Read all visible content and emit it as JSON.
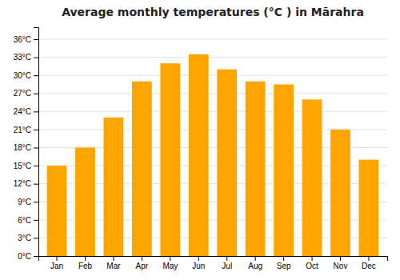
{
  "chart_data": {
    "type": "bar",
    "title": "Average monthly temperatures (°C ) in Mārahra",
    "categories": [
      "Jan",
      "Feb",
      "Mar",
      "Apr",
      "May",
      "Jun",
      "Jul",
      "Aug",
      "Sep",
      "Oct",
      "Nov",
      "Dec"
    ],
    "values": [
      15,
      18,
      23,
      29,
      32,
      33.5,
      31,
      29,
      28.5,
      26,
      21,
      16
    ],
    "color": "#FFA500",
    "ylim": [
      0,
      38
    ],
    "yticks": [
      {
        "value": 0,
        "label": "0°C"
      },
      {
        "value": 3,
        "label": "3°C"
      },
      {
        "value": 6,
        "label": "6°C"
      },
      {
        "value": 9,
        "label": "9°C"
      },
      {
        "value": 12,
        "label": "12°C"
      },
      {
        "value": 15,
        "label": "15°C"
      },
      {
        "value": 18,
        "label": "18°C"
      },
      {
        "value": 21,
        "label": "21°C"
      },
      {
        "value": 24,
        "label": "24°C"
      },
      {
        "value": 27,
        "label": "27°C"
      },
      {
        "value": 30,
        "label": "30°C"
      },
      {
        "value": 33,
        "label": "33°C"
      },
      {
        "value": 36,
        "label": "36°C"
      }
    ],
    "grid": true
  }
}
